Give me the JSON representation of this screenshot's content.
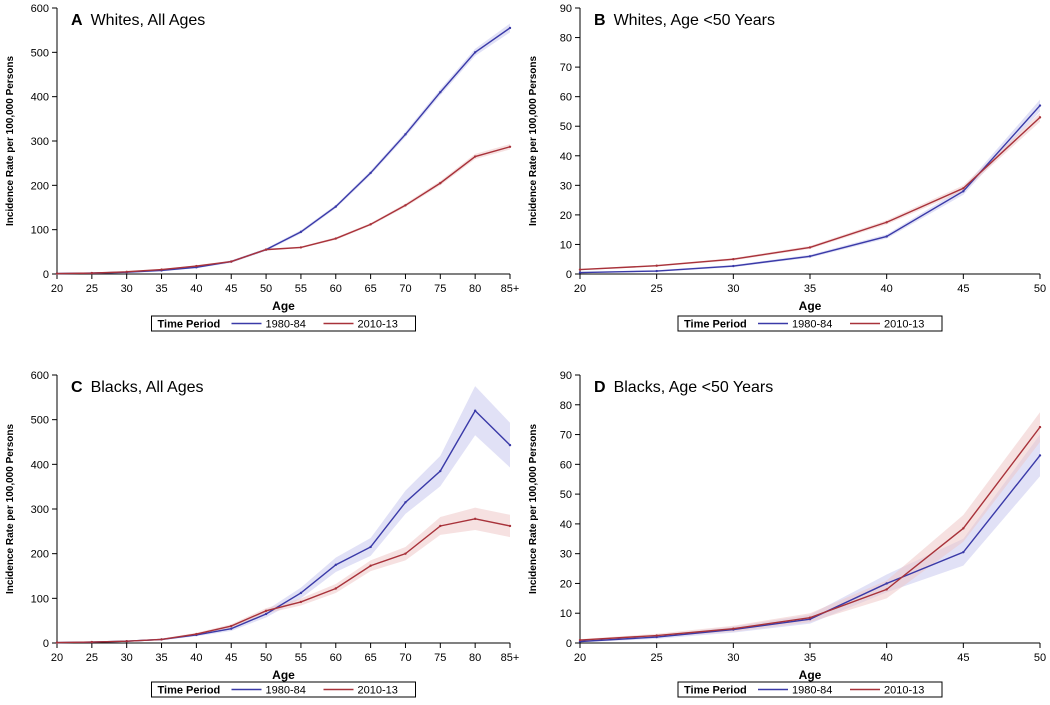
{
  "colors": {
    "series_1980": "#3a3aa8",
    "series_2010": "#a8323a",
    "band_1980": "#c8c8ee",
    "band_2010": "#eec8c8"
  },
  "legend": {
    "title": "Time Period",
    "items": [
      "1980-84",
      "2010-13"
    ]
  },
  "chart_data": [
    {
      "panel": "A",
      "type": "line",
      "title_letter": "A",
      "title": "Whites, All Ages",
      "xlabel": "Age",
      "ylabel": "Incidence Rate per 100,000 Persons",
      "ylim": [
        0,
        600
      ],
      "yticks": [
        0,
        100,
        200,
        300,
        400,
        500,
        600
      ],
      "x": [
        20,
        25,
        30,
        35,
        40,
        45,
        50,
        55,
        60,
        65,
        70,
        75,
        80,
        85
      ],
      "xtick_labels": [
        "20",
        "25",
        "30",
        "35",
        "40",
        "45",
        "50",
        "55",
        "60",
        "65",
        "70",
        "75",
        "80",
        "85+"
      ],
      "series": [
        {
          "name": "1980-84",
          "values": [
            1,
            2,
            4,
            8,
            15,
            28,
            55,
            95,
            152,
            228,
            315,
            410,
            500,
            555
          ],
          "band": [
            2,
            2,
            2,
            2,
            2,
            3,
            3,
            4,
            4,
            5,
            6,
            7,
            8,
            10
          ]
        },
        {
          "name": "2010-13",
          "values": [
            1,
            2,
            5,
            10,
            18,
            28,
            55,
            60,
            80,
            112,
            155,
            205,
            265,
            287
          ],
          "band": [
            1,
            1,
            1,
            1,
            2,
            2,
            2,
            2,
            3,
            3,
            4,
            5,
            6,
            6
          ]
        }
      ]
    },
    {
      "panel": "B",
      "type": "line",
      "title_letter": "B",
      "title": "Whites, Age <50 Years",
      "xlabel": "Age",
      "ylabel": "Incidence Rate per 100,000 Persons",
      "ylim": [
        0,
        90
      ],
      "yticks": [
        0,
        10,
        20,
        30,
        40,
        50,
        60,
        70,
        80,
        90
      ],
      "x": [
        20,
        25,
        30,
        35,
        40,
        45,
        50
      ],
      "xtick_labels": [
        "20",
        "25",
        "30",
        "35",
        "40",
        "45",
        "50"
      ],
      "series": [
        {
          "name": "1980-84",
          "values": [
            0.5,
            1,
            2.7,
            6,
            12.7,
            28,
            57
          ],
          "band": [
            0.2,
            0.3,
            0.4,
            0.5,
            0.7,
            1.2,
            2
          ]
        },
        {
          "name": "2010-13",
          "values": [
            1.5,
            2.8,
            5,
            9,
            17.5,
            29,
            53
          ],
          "band": [
            0.2,
            0.3,
            0.4,
            0.5,
            0.7,
            1,
            1.5
          ]
        }
      ]
    },
    {
      "panel": "C",
      "type": "line",
      "title_letter": "C",
      "title": "Blacks, All Ages",
      "xlabel": "Age",
      "ylabel": "Incidence Rate per 100,000 Persons",
      "ylim": [
        0,
        600
      ],
      "yticks": [
        0,
        100,
        200,
        300,
        400,
        500,
        600
      ],
      "x": [
        20,
        25,
        30,
        35,
        40,
        45,
        50,
        55,
        60,
        65,
        70,
        75,
        80,
        85
      ],
      "xtick_labels": [
        "20",
        "25",
        "30",
        "35",
        "40",
        "45",
        "50",
        "55",
        "60",
        "65",
        "70",
        "75",
        "80",
        "85+"
      ],
      "series": [
        {
          "name": "1980-84",
          "values": [
            1,
            2,
            4,
            8,
            18,
            32,
            65,
            112,
            175,
            215,
            315,
            385,
            520,
            443
          ],
          "band": [
            1,
            1,
            1,
            2,
            3,
            5,
            8,
            12,
            16,
            20,
            26,
            34,
            55,
            50
          ]
        },
        {
          "name": "2010-13",
          "values": [
            1,
            2,
            4,
            8,
            20,
            38,
            72,
            92,
            122,
            173,
            200,
            262,
            278,
            262
          ],
          "band": [
            1,
            1,
            1,
            2,
            3,
            4,
            6,
            8,
            10,
            12,
            15,
            20,
            25,
            25
          ]
        }
      ]
    },
    {
      "panel": "D",
      "type": "line",
      "title_letter": "D",
      "title": "Blacks, Age <50 Years",
      "xlabel": "Age",
      "ylabel": "Incidence Rate per 100,000 Persons",
      "ylim": [
        0,
        90
      ],
      "yticks": [
        0,
        10,
        20,
        30,
        40,
        50,
        60,
        70,
        80,
        90
      ],
      "x": [
        20,
        25,
        30,
        35,
        40,
        45,
        50
      ],
      "xtick_labels": [
        "20",
        "25",
        "30",
        "35",
        "40",
        "45",
        "50"
      ],
      "series": [
        {
          "name": "1980-84",
          "values": [
            0.5,
            2,
            4.5,
            8,
            20,
            30.5,
            63
          ],
          "band": [
            0.3,
            0.6,
            1,
            1.5,
            3,
            4.5,
            7
          ]
        },
        {
          "name": "2010-13",
          "values": [
            1,
            2.5,
            4.8,
            8.5,
            18,
            38.5,
            72.5
          ],
          "band": [
            0.3,
            0.6,
            1,
            1.5,
            3,
            4.5,
            5
          ]
        }
      ]
    }
  ]
}
